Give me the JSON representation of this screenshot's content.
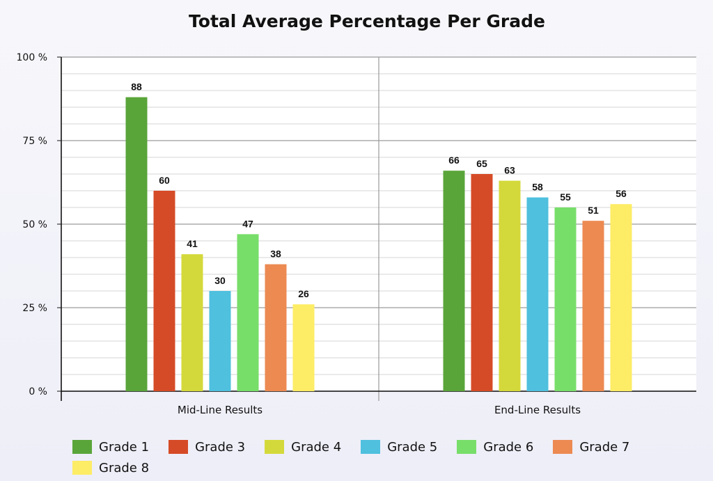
{
  "chart_data": {
    "type": "bar",
    "title": "Total Average Percentage Per Grade",
    "xlabel": "",
    "ylabel": "",
    "categories": [
      "Mid-Line Results",
      "End-Line Results"
    ],
    "ylim": [
      0,
      100
    ],
    "y_ticks": [
      "0 %",
      "25 %",
      "50 %",
      "75 %",
      "100 %"
    ],
    "grid": true,
    "legend_position": "bottom",
    "series": [
      {
        "name": "Grade 1",
        "color": "#5aa53a",
        "values": [
          88,
          66
        ]
      },
      {
        "name": "Grade 3",
        "color": "#d64b27",
        "values": [
          60,
          65
        ]
      },
      {
        "name": "Grade 4",
        "color": "#d4d93b",
        "values": [
          41,
          63
        ]
      },
      {
        "name": "Grade 5",
        "color": "#4fc0de",
        "values": [
          30,
          58
        ]
      },
      {
        "name": "Grade 6",
        "color": "#78de6a",
        "values": [
          47,
          55
        ]
      },
      {
        "name": "Grade 7",
        "color": "#ec8a52",
        "values": [
          38,
          51
        ]
      },
      {
        "name": "Grade 8",
        "color": "#fdec66",
        "values": [
          26,
          56
        ]
      }
    ]
  }
}
